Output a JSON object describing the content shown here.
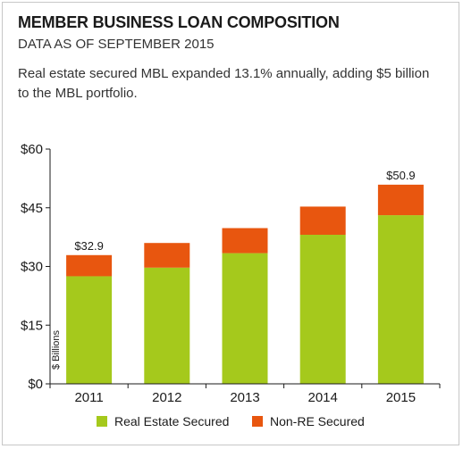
{
  "title": "MEMBER BUSINESS LOAN COMPOSITION",
  "subtitle": "DATA AS OF SEPTEMBER 2015",
  "summary": "Real estate secured MBL expanded 13.1% annually, adding $5 billion to the MBL portfolio.",
  "colors": {
    "real_estate": "#a5c91c",
    "non_re": "#e8560f"
  },
  "chart_data": {
    "type": "bar",
    "stacked": true,
    "categories": [
      "2011",
      "2012",
      "2013",
      "2014",
      "2015"
    ],
    "series": [
      {
        "name": "Real Estate Secured",
        "values": [
          27.5,
          29.7,
          33.4,
          38.1,
          43.1
        ]
      },
      {
        "name": "Non-RE Secured",
        "values": [
          5.4,
          6.3,
          6.4,
          7.2,
          7.8
        ]
      }
    ],
    "data_labels": [
      "$32.9",
      "",
      "",
      "",
      "$50.9"
    ],
    "ylabel": "$ Billions",
    "ylim": [
      0,
      60
    ],
    "yticks": [
      0,
      15,
      30,
      45,
      60
    ],
    "ytick_labels": [
      "$0",
      "$15",
      "$30",
      "$45",
      "$60"
    ],
    "grid": false,
    "legend_position": "bottom"
  }
}
